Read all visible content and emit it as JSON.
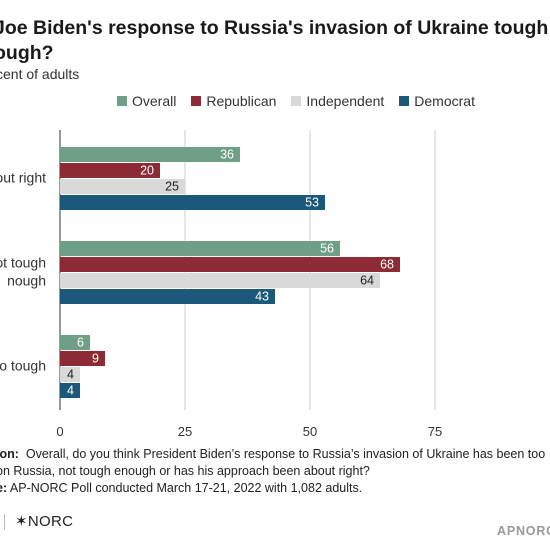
{
  "title_lines": [
    "Joe Biden's response to Russia's invasion of Ukraine tough",
    "ough?"
  ],
  "subtitle": "cent of adults",
  "footnote": {
    "question_label": "ion:",
    "question_line1": "Overall, do you think President Biden’s response to Russia’s invasion of Ukraine has been too",
    "question_line2": "on Russia, not tough enough or has his approach been about right?",
    "source_label": "e:",
    "source_text": "AP-NORC Poll conducted March 17-21, 2022 with 1,082 adults."
  },
  "logo_text": "✶NORC",
  "brand_link": "APNORC",
  "colors": {
    "overall": "#6f9f86",
    "republican": "#8c2a35",
    "independent": "#d9d9d9",
    "democrat": "#1b5879",
    "gridline": "#cccccc",
    "axis": "#333333"
  },
  "chart_data": {
    "type": "bar",
    "orientation": "horizontal",
    "categories": [
      "out right",
      "ot tough\nnough",
      "o tough"
    ],
    "series": [
      {
        "name": "Overall",
        "values": [
          36,
          56,
          6
        ]
      },
      {
        "name": "Republican",
        "values": [
          20,
          68,
          9
        ]
      },
      {
        "name": "Independent",
        "values": [
          25,
          64,
          4
        ]
      },
      {
        "name": "Democrat",
        "values": [
          53,
          43,
          4
        ]
      }
    ],
    "x_ticks": [
      0,
      25,
      50,
      75
    ],
    "xlim": [
      0,
      100
    ],
    "grid": true,
    "legend_position": "top"
  }
}
